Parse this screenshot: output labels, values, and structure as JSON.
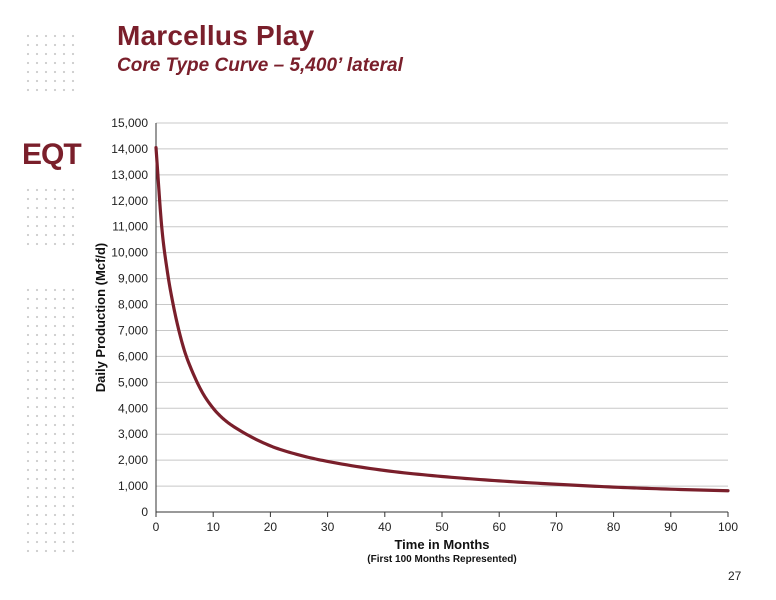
{
  "slide": {
    "title": "Marcellus Play",
    "subtitle": "Core Type Curve – 5,400’ lateral",
    "logo_text": "EQT",
    "page_number": "27"
  },
  "colors": {
    "brand": "#7a1f2b",
    "curve": "#7a1f2b",
    "grid": "#c8c8c8",
    "dots": "#cccccc"
  },
  "chart_data": {
    "type": "line",
    "title": "",
    "xlabel": "Time in Months",
    "xlabel_note": "(First 100 Months Represented)",
    "ylabel": "Daily Production (Mcf/d)",
    "xlim": [
      0,
      100
    ],
    "ylim": [
      0,
      15000
    ],
    "x_ticks": [
      "0",
      "10",
      "20",
      "30",
      "40",
      "50",
      "60",
      "70",
      "80",
      "90",
      "100"
    ],
    "y_ticks": [
      "0",
      "1,000",
      "2,000",
      "3,000",
      "4,000",
      "5,000",
      "6,000",
      "7,000",
      "8,000",
      "9,000",
      "10,000",
      "11,000",
      "12,000",
      "13,000",
      "14,000",
      "15,000"
    ],
    "grid": true,
    "legend": "none",
    "series": [
      {
        "x": [
          0,
          1,
          2,
          3,
          4,
          5,
          6,
          8,
          10,
          12,
          15,
          20,
          25,
          30,
          40,
          50,
          60,
          70,
          80,
          90,
          100
        ],
        "y": [
          14050,
          11000,
          9250,
          8000,
          7000,
          6200,
          5600,
          4650,
          4000,
          3550,
          3100,
          2550,
          2200,
          1950,
          1600,
          1370,
          1200,
          1070,
          960,
          880,
          820
        ]
      }
    ]
  }
}
